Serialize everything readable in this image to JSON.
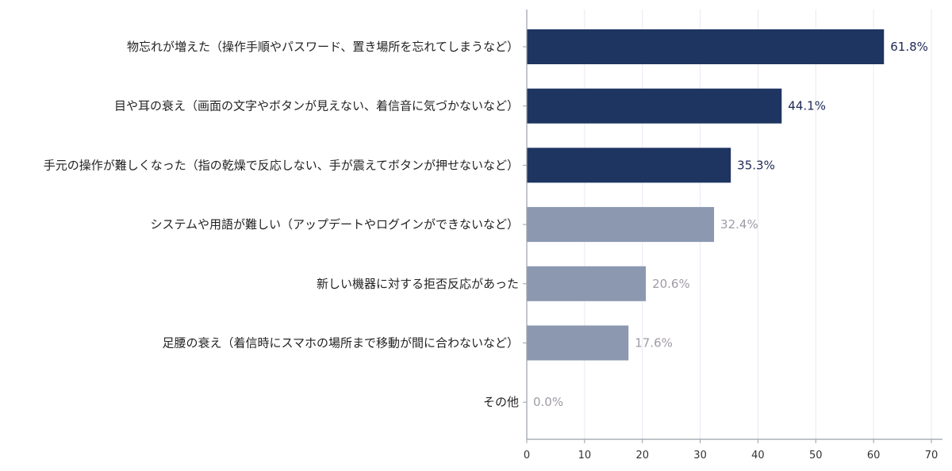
{
  "chart_data": {
    "type": "bar",
    "orientation": "horizontal",
    "title": "",
    "xlabel": "",
    "ylabel": "",
    "xlim": [
      0,
      70
    ],
    "xticks": [
      0,
      10,
      20,
      30,
      40,
      50,
      60,
      70
    ],
    "grid": "vertical",
    "categories": [
      "物忘れが増えた（操作手順やパスワード、置き場所を忘れてしまうなど）",
      "目や耳の衰え（画面の文字やボタンが見えない、着信音に気づかないなど）",
      "手元の操作が難しくなった（指の乾燥で反応しない、手が震えてボタンが押せないなど）",
      "システムや用語が難しい（アップデートやログインができないなど）",
      "新しい機器に対する拒否反応があった",
      "足腰の衰え（着信時にスマホの場所まで移動が間に合わないなど）",
      "その他"
    ],
    "values": [
      61.8,
      44.1,
      35.3,
      32.4,
      20.6,
      17.6,
      0.0
    ],
    "value_labels": [
      "61.8%",
      "44.1%",
      "35.3%",
      "32.4%",
      "20.6%",
      "17.6%",
      "0.0%"
    ],
    "highlighted": [
      true,
      true,
      true,
      false,
      false,
      false,
      false
    ],
    "colors": {
      "highlight_bar": "#1e3461",
      "normal_bar": "#8b98b0",
      "highlight_label": "#1e2a55",
      "normal_label": "#a09aa6"
    }
  }
}
